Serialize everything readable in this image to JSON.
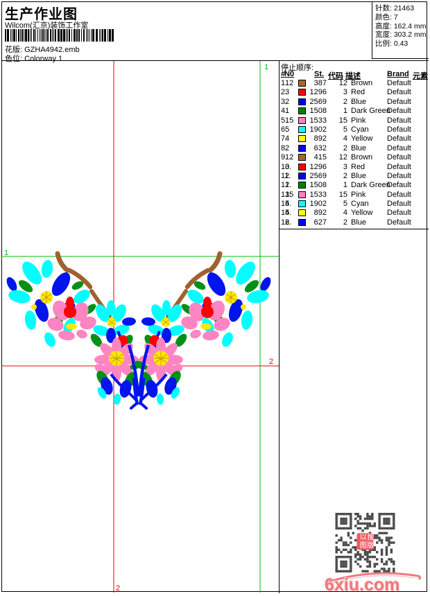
{
  "header": {
    "title": "生产作业图",
    "subtitle": "Wilcom(汇京)装饰工作室",
    "pattern_label": "花版:",
    "pattern_value": "GZHA4942.emb",
    "colorway_label": "色位:",
    "colorway_value": "Colorway 1",
    "info": [
      {
        "label": "针数:",
        "value": "21463"
      },
      {
        "label": "颜色:",
        "value": "7"
      },
      {
        "label": "高度:",
        "value": "162.4 mm"
      },
      {
        "label": "宽度:",
        "value": "303.2 mm"
      },
      {
        "label": "比例:",
        "value": "0.43"
      }
    ]
  },
  "stop_sequence": {
    "title": "停止顺序:",
    "columns": [
      "#",
      "N0",
      "St.",
      "代码",
      "描述",
      "Brand",
      "元素"
    ],
    "rows": [
      {
        "idx": "1.",
        "n0": "12",
        "color": "#A4682F",
        "st": "387",
        "code": "12",
        "desc": "Brown",
        "brand": "Default",
        "elem": ""
      },
      {
        "idx": "2.",
        "n0": "3",
        "color": "#FF0000",
        "st": "1296",
        "code": "3",
        "desc": "Red",
        "brand": "Default",
        "elem": ""
      },
      {
        "idx": "3.",
        "n0": "2",
        "color": "#0000FF",
        "st": "2569",
        "code": "2",
        "desc": "Blue",
        "brand": "Default",
        "elem": ""
      },
      {
        "idx": "4.",
        "n0": "1",
        "color": "#008000",
        "st": "1508",
        "code": "1",
        "desc": "Dark Green",
        "brand": "Default",
        "elem": ""
      },
      {
        "idx": "5.",
        "n0": "15",
        "color": "#FF80C0",
        "st": "1533",
        "code": "15",
        "desc": "Pink",
        "brand": "Default",
        "elem": ""
      },
      {
        "idx": "6.",
        "n0": "5",
        "color": "#00FFFF",
        "st": "1902",
        "code": "5",
        "desc": "Cyan",
        "brand": "Default",
        "elem": ""
      },
      {
        "idx": "7.",
        "n0": "4",
        "color": "#FFFF00",
        "st": "892",
        "code": "4",
        "desc": "Yellow",
        "brand": "Default",
        "elem": ""
      },
      {
        "idx": "8.",
        "n0": "2",
        "color": "#0000FF",
        "st": "632",
        "code": "2",
        "desc": "Blue",
        "brand": "Default",
        "elem": ""
      },
      {
        "idx": "9.",
        "n0": "12",
        "color": "#A4682F",
        "st": "415",
        "code": "12",
        "desc": "Brown",
        "brand": "Default",
        "elem": ""
      },
      {
        "idx": "10.",
        "n0": "3",
        "color": "#FF0000",
        "st": "1296",
        "code": "3",
        "desc": "Red",
        "brand": "Default",
        "elem": ""
      },
      {
        "idx": "11.",
        "n0": "2",
        "color": "#0000FF",
        "st": "2569",
        "code": "2",
        "desc": "Blue",
        "brand": "Default",
        "elem": ""
      },
      {
        "idx": "12.",
        "n0": "1",
        "color": "#008000",
        "st": "1508",
        "code": "1",
        "desc": "Dark Green",
        "brand": "Default",
        "elem": ""
      },
      {
        "idx": "13.",
        "n0": "15",
        "color": "#FF80C0",
        "st": "1533",
        "code": "15",
        "desc": "Pink",
        "brand": "Default",
        "elem": ""
      },
      {
        "idx": "14.",
        "n0": "5",
        "color": "#00FFFF",
        "st": "1902",
        "code": "5",
        "desc": "Cyan",
        "brand": "Default",
        "elem": ""
      },
      {
        "idx": "15.",
        "n0": "4",
        "color": "#FFFF00",
        "st": "892",
        "code": "4",
        "desc": "Yellow",
        "brand": "Default",
        "elem": ""
      },
      {
        "idx": "16.",
        "n0": "2",
        "color": "#0000FF",
        "st": "627",
        "code": "2",
        "desc": "Blue",
        "brand": "Default",
        "elem": ""
      }
    ]
  },
  "markers": {
    "start_label": "1",
    "end_label": "2",
    "start_color": "#00C000",
    "end_color": "#EE0000"
  },
  "design_palette": {
    "blue": "#0014EE",
    "cyan": "#00FFFF",
    "green": "#009018",
    "yellow": "#FFE800",
    "pink": "#FF85C2",
    "red": "#FF0000",
    "brown": "#A0622D"
  },
  "watermark": {
    "site": "6xiu.com",
    "qr_center_text": "以图搜版",
    "qr_color": "#4a4a4a",
    "logo_color": "#f0787c"
  }
}
